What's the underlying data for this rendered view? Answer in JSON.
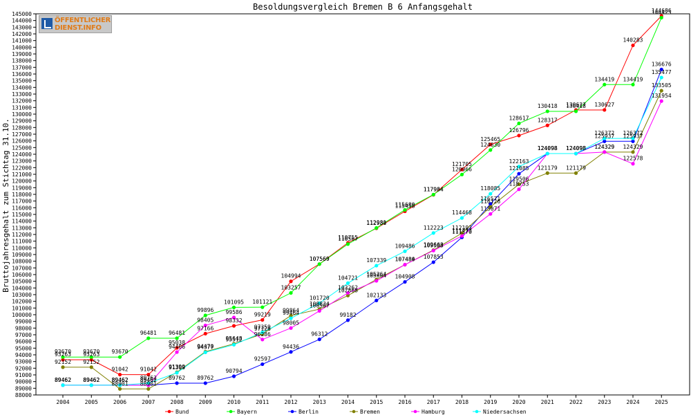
{
  "logo": {
    "line1": "ÖFFENTLICHER",
    "line2": "DIENST.INFO"
  },
  "chart_data": {
    "type": "line",
    "title": "Besoldungsvergleich Bremen B 6 Anfangsgehalt",
    "xlabel": "",
    "ylabel": "Bruttojahresgehalt zum Stichtag 31.10.",
    "categories": [
      "2004",
      "2005",
      "2006",
      "2007",
      "2008",
      "2009",
      "2010",
      "2011",
      "2012",
      "2013",
      "2014",
      "2015",
      "2016",
      "2017",
      "2018",
      "2019",
      "2020",
      "2021",
      "2022",
      "2023",
      "2024",
      "2025"
    ],
    "ylim": [
      88000,
      145000
    ],
    "ytick_step": 1000,
    "grid": false,
    "legend_position": "bottom",
    "series": [
      {
        "name": "Bund",
        "color": "#ff0000",
        "values": [
          93263,
          93263,
          91042,
          91042,
          95038,
          97166,
          98332,
          99219,
          104994,
          107569,
          110755,
          112930,
          115458,
          117934,
          121705,
          125465,
          126796,
          128317,
          130627,
          130627,
          140283,
          144686
        ]
      },
      {
        "name": "Bayern",
        "color": "#00ff00",
        "values": [
          93670,
          93670,
          93670,
          96481,
          96481,
          99896,
          101095,
          101121,
          103257,
          107569,
          110567,
          112981,
          115680,
          117964,
          120966,
          124630,
          128617,
          130418,
          130418,
          134419,
          134419,
          144425
        ]
      },
      {
        "name": "Berlin",
        "color": "#0000ff",
        "values": [
          89462,
          89462,
          89462,
          89462,
          89762,
          89762,
          90794,
          92597,
          94436,
          96312,
          99182,
          102133,
          104908,
          107853,
          111570,
          116571,
          121085,
          124098,
          124098,
          125937,
          125937,
          136676
        ]
      },
      {
        "name": "Bremen",
        "color": "#808000",
        "values": [
          92152,
          92152,
          88901,
          88901,
          91399,
          94470,
          95648,
          97126,
          99864,
          100834,
          102868,
          105264,
          107480,
          109663,
          112193,
          116126,
          119506,
          121179,
          121179,
          124329,
          124329,
          133505
        ]
      },
      {
        "name": "Hamburg",
        "color": "#ff00ff",
        "values": [
          89462,
          89462,
          89462,
          89462,
          94406,
          98405,
          99586,
          96286,
          98005,
          100567,
          103262,
          105064,
          107484,
          109588,
          111773,
          115071,
          118753,
          124098,
          124098,
          124329,
          122578,
          131954
        ]
      },
      {
        "name": "Niedersachsen",
        "color": "#00ffff",
        "values": [
          89462,
          89462,
          89462,
          89762,
          91309,
          94377,
          95512,
          97359,
          99464,
          101720,
          104721,
          107339,
          109486,
          112223,
          114468,
          118085,
          122163,
          124098,
          124098,
          126372,
          126372,
          135477
        ]
      }
    ]
  }
}
